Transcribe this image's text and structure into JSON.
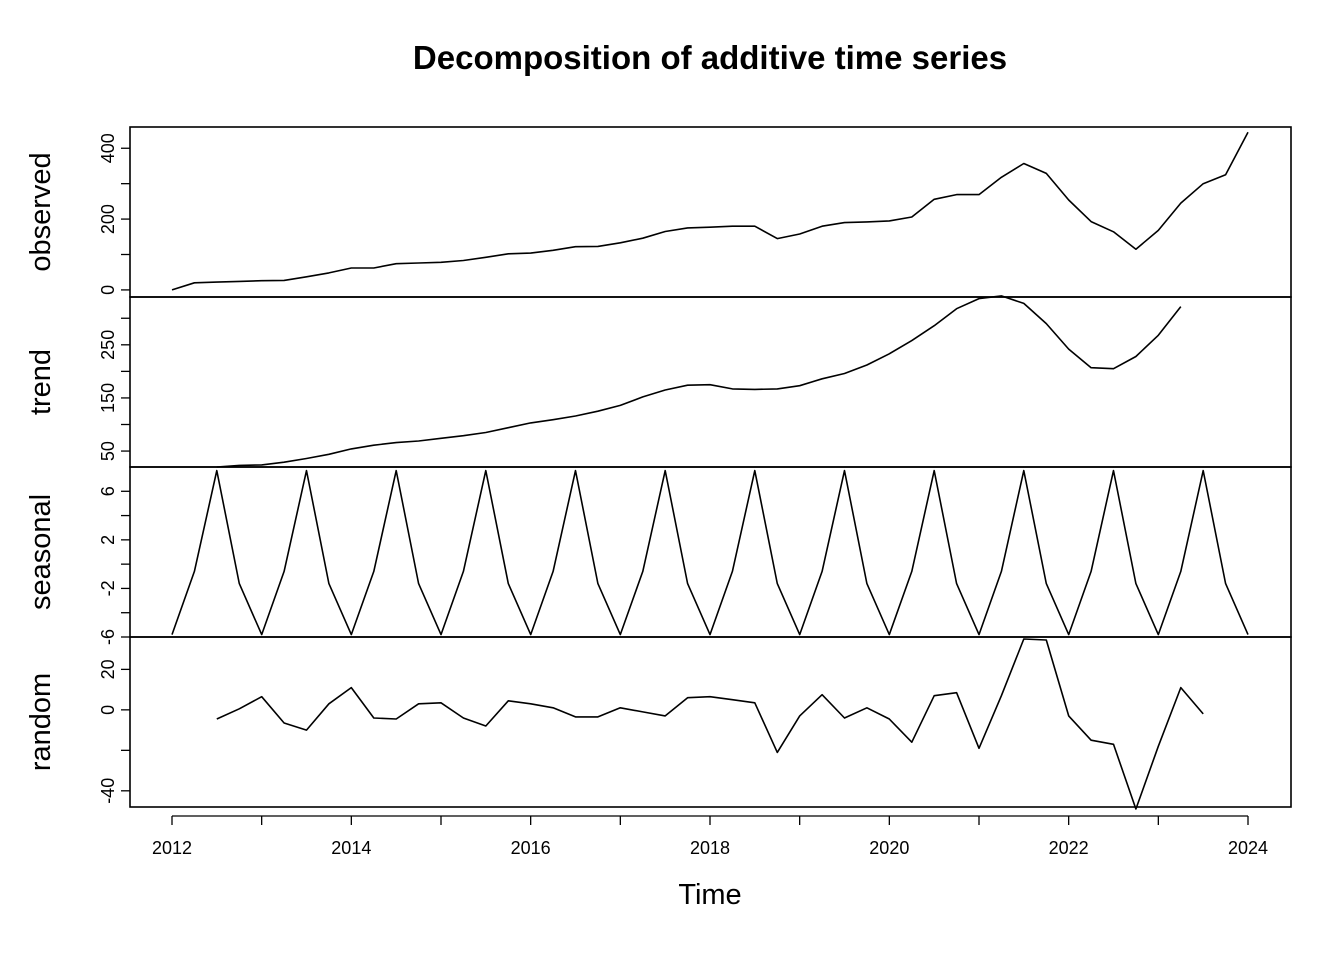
{
  "chart_data": {
    "type": "line",
    "title": "Decomposition of additive time series",
    "xlabel": "Time",
    "x": {
      "start": 2012.0,
      "frequency": 4,
      "xlim": [
        2012,
        2024
      ],
      "ticks": [
        2012,
        2014,
        2016,
        2018,
        2020,
        2022,
        2024
      ],
      "tick_labels": [
        "2012",
        "2014",
        "2016",
        "2018",
        "2020",
        "2022",
        "2024"
      ]
    },
    "panels": [
      {
        "name": "observed",
        "ylim": [
          -20,
          460
        ],
        "ticks": [
          0,
          100,
          200,
          300,
          400
        ],
        "tick_labels": [
          "0",
          "",
          "200",
          "",
          "400"
        ],
        "values": [
          0,
          20,
          22,
          24,
          26,
          27,
          37,
          48,
          62,
          62,
          74,
          76,
          78,
          83,
          92,
          102,
          104,
          112,
          122,
          123,
          133,
          146,
          165,
          175,
          177,
          180,
          180,
          145,
          158,
          180,
          190,
          192,
          195,
          206,
          256,
          269,
          269,
          318,
          357,
          329,
          254,
          193,
          164,
          115,
          168,
          245,
          300,
          325,
          445
        ]
      },
      {
        "name": "trend",
        "ylim": [
          20,
          340
        ],
        "ticks": [
          50,
          100,
          150,
          200,
          250,
          300
        ],
        "tick_labels": [
          "50",
          "",
          "150",
          "",
          "250",
          ""
        ],
        "values": [
          null,
          null,
          20,
          23,
          24,
          29,
          36,
          44,
          54,
          61,
          66,
          69,
          74,
          79,
          85,
          94,
          103,
          109,
          116,
          125,
          136,
          152,
          165,
          174,
          175,
          167,
          166,
          167,
          173,
          186,
          196,
          212,
          233,
          258,
          286,
          318,
          337,
          342,
          328,
          290,
          242,
          207,
          205,
          228,
          268,
          322,
          null,
          null,
          null
        ]
      },
      {
        "name": "seasonal",
        "ylim": [
          -6,
          8
        ],
        "ticks": [
          -6,
          -4,
          -2,
          0,
          2,
          4,
          6
        ],
        "tick_labels": [
          "-6",
          "",
          "-2",
          "",
          "2",
          "",
          "6"
        ],
        "values": [
          -5.8,
          -0.6,
          7.7,
          -1.6,
          -5.8,
          -0.6,
          7.7,
          -1.6,
          -5.8,
          -0.6,
          7.7,
          -1.6,
          -5.8,
          -0.6,
          7.7,
          -1.6,
          -5.8,
          -0.6,
          7.7,
          -1.6,
          -5.8,
          -0.6,
          7.7,
          -1.6,
          -5.8,
          -0.6,
          7.7,
          -1.6,
          -5.8,
          -0.6,
          7.7,
          -1.6,
          -5.8,
          -0.6,
          7.7,
          -1.6,
          -5.8,
          -0.6,
          7.7,
          -1.6,
          -5.8,
          -0.6,
          7.7,
          -1.6,
          -5.8,
          -0.6,
          7.7,
          -1.6,
          -5.8
        ]
      },
      {
        "name": "random",
        "ylim": [
          -48,
          36
        ],
        "ticks": [
          -40,
          -20,
          0,
          20
        ],
        "tick_labels": [
          "-40",
          "",
          "0",
          "20"
        ],
        "values": [
          null,
          null,
          -4.5,
          0.5,
          6.5,
          -6.5,
          -10,
          3,
          11,
          -4,
          -4.5,
          3,
          3.5,
          -4,
          -8,
          4.5,
          3,
          1,
          -3.5,
          -3.5,
          1,
          -1,
          -3,
          6,
          6.5,
          5,
          3.5,
          -21,
          -3,
          7.5,
          -4,
          1,
          -4.5,
          -16,
          7,
          8.5,
          -19,
          7,
          35,
          34.5,
          -3,
          -15,
          -17,
          -49,
          -18,
          11,
          -2,
          null,
          null
        ]
      }
    ],
    "grid": false,
    "legend": "none"
  }
}
